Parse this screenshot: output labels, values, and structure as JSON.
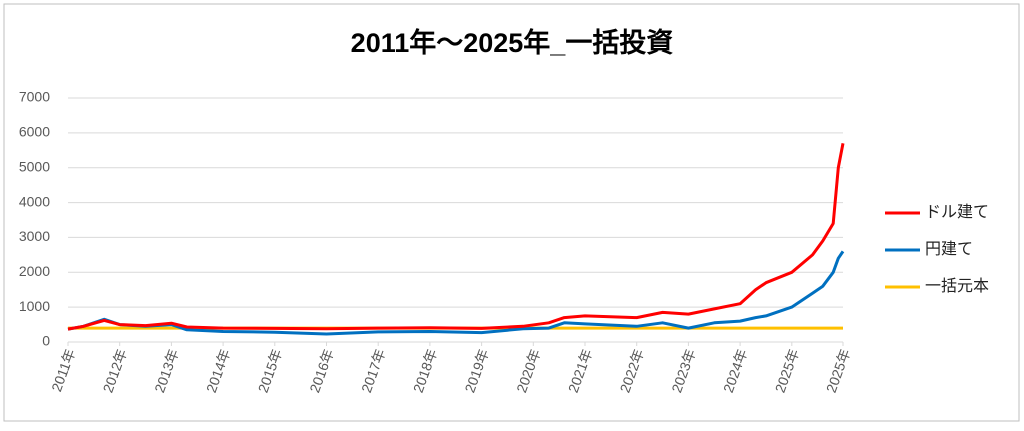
{
  "chart_data": {
    "type": "line",
    "title": "2011年～2025年_一括投資",
    "x": [
      2011,
      2011.3,
      2011.7,
      2012,
      2012.5,
      2013,
      2013.3,
      2014,
      2015,
      2016,
      2017,
      2018,
      2019,
      2019.8,
      2020.3,
      2020.6,
      2021,
      2022,
      2022.5,
      2023,
      2023.5,
      2024,
      2024.3,
      2024.5,
      2025,
      2025.4,
      2025.6,
      2025.8,
      2025.9,
      2025.99
    ],
    "series": [
      {
        "name": "ドル建て",
        "color": "#ff0000",
        "values": [
          370,
          450,
          620,
          500,
          470,
          540,
          430,
          400,
          390,
          380,
          400,
          410,
          390,
          450,
          550,
          700,
          750,
          700,
          850,
          800,
          950,
          1100,
          1500,
          1700,
          2000,
          2500,
          2900,
          3400,
          5000,
          5700
        ]
      },
      {
        "name": "円建て",
        "color": "#0070c0",
        "values": [
          370,
          450,
          650,
          500,
          450,
          500,
          350,
          300,
          280,
          230,
          290,
          300,
          270,
          380,
          400,
          550,
          520,
          450,
          550,
          400,
          550,
          600,
          700,
          750,
          1000,
          1400,
          1600,
          2000,
          2400,
          2600
        ]
      },
      {
        "name": "一括元本",
        "color": "#ffc000",
        "values": [
          400,
          400,
          400,
          400,
          400,
          400,
          400,
          400,
          400,
          400,
          400,
          400,
          400,
          400,
          400,
          400,
          400,
          400,
          400,
          400,
          400,
          400,
          400,
          400,
          400,
          400,
          400,
          400,
          400,
          400
        ]
      }
    ],
    "xlim": [
      2011,
      2025.99
    ],
    "xticks": [
      {
        "value": 2011,
        "label": "2011年"
      },
      {
        "value": 2012,
        "label": "2012年"
      },
      {
        "value": 2013,
        "label": "2013年"
      },
      {
        "value": 2014,
        "label": "2014年"
      },
      {
        "value": 2015,
        "label": "2015年"
      },
      {
        "value": 2016,
        "label": "2016年"
      },
      {
        "value": 2017,
        "label": "2017年"
      },
      {
        "value": 2018,
        "label": "2018年"
      },
      {
        "value": 2019,
        "label": "2019年"
      },
      {
        "value": 2020,
        "label": "2020年"
      },
      {
        "value": 2021,
        "label": "2021年"
      },
      {
        "value": 2022,
        "label": "2022年"
      },
      {
        "value": 2023,
        "label": "2023年"
      },
      {
        "value": 2024,
        "label": "2024年"
      },
      {
        "value": 2025,
        "label": "2025年"
      },
      {
        "value": 2025.99,
        "label": "2025年"
      }
    ],
    "ylim": [
      0,
      7000
    ],
    "yticks": [
      0,
      1000,
      2000,
      3000,
      4000,
      5000,
      6000,
      7000
    ],
    "grid": true,
    "legend": "right"
  }
}
